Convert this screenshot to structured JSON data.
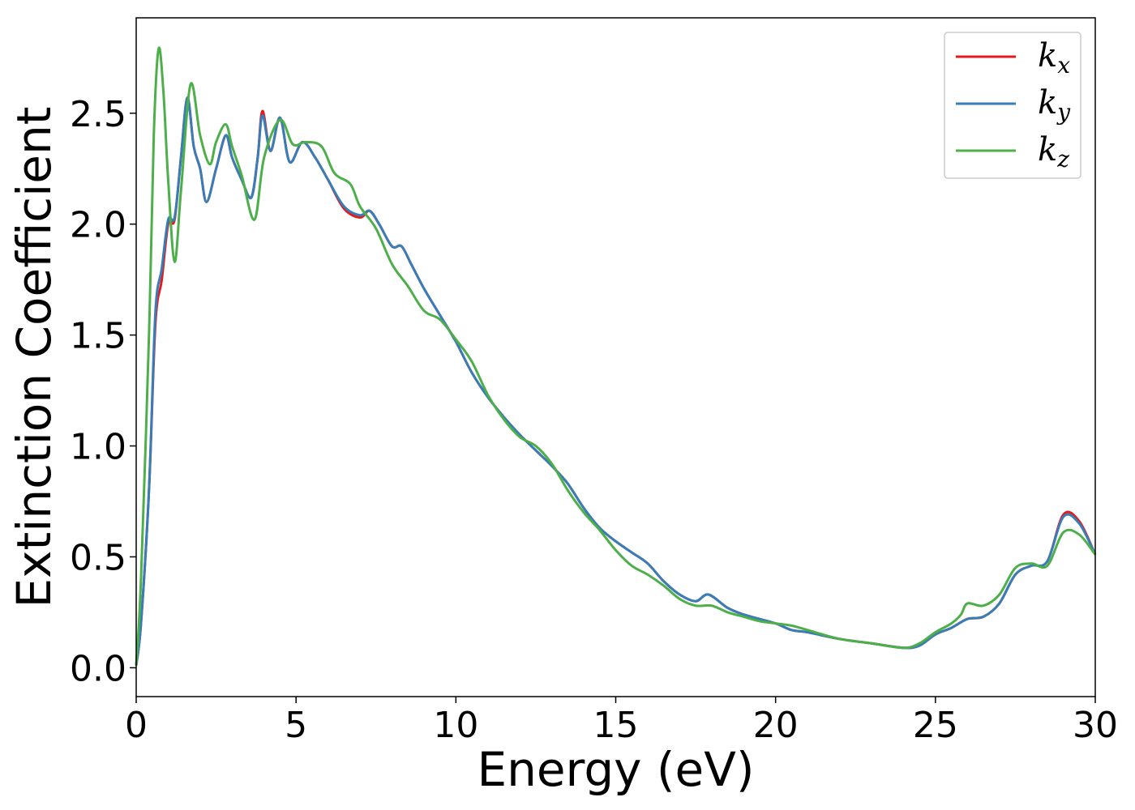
{
  "chart_data": {
    "type": "line",
    "title": "",
    "xlabel": "Energy (eV)",
    "ylabel": "Extinction Coefficient",
    "xlim": [
      0,
      30
    ],
    "ylim": [
      -0.13,
      2.93
    ],
    "xticks": [
      0,
      5,
      10,
      15,
      20,
      25,
      30
    ],
    "xtick_labels": [
      "0",
      "5",
      "10",
      "15",
      "20",
      "25",
      "30"
    ],
    "yticks": [
      0.0,
      0.5,
      1.0,
      1.5,
      2.0,
      2.5
    ],
    "ytick_labels": [
      "0.0",
      "0.5",
      "1.0",
      "1.5",
      "2.0",
      "2.5"
    ],
    "grid": false,
    "legend_position": "top-right",
    "series": [
      {
        "name": "k",
        "subscript": "x",
        "color": "#e41a1c",
        "points": [
          [
            0,
            0.01
          ],
          [
            0.15,
            0.2
          ],
          [
            0.4,
            0.8
          ],
          [
            0.6,
            1.55
          ],
          [
            0.8,
            1.75
          ],
          [
            1.0,
            2.0
          ],
          [
            1.2,
            2.02
          ],
          [
            1.4,
            2.3
          ],
          [
            1.6,
            2.57
          ],
          [
            1.8,
            2.35
          ],
          [
            2.0,
            2.25
          ],
          [
            2.2,
            2.1
          ],
          [
            2.5,
            2.25
          ],
          [
            2.8,
            2.4
          ],
          [
            3.0,
            2.3
          ],
          [
            3.3,
            2.2
          ],
          [
            3.6,
            2.12
          ],
          [
            3.8,
            2.3
          ],
          [
            3.95,
            2.51
          ],
          [
            4.2,
            2.33
          ],
          [
            4.5,
            2.48
          ],
          [
            4.8,
            2.28
          ],
          [
            5.2,
            2.37
          ],
          [
            5.6,
            2.3
          ],
          [
            6.0,
            2.2
          ],
          [
            6.5,
            2.07
          ],
          [
            7.0,
            2.03
          ],
          [
            7.3,
            2.06
          ],
          [
            7.6,
            2.0
          ],
          [
            8.0,
            1.9
          ],
          [
            8.3,
            1.9
          ],
          [
            8.6,
            1.82
          ],
          [
            9.0,
            1.71
          ],
          [
            9.5,
            1.59
          ],
          [
            10.0,
            1.47
          ],
          [
            10.5,
            1.33
          ],
          [
            11.0,
            1.22
          ],
          [
            11.5,
            1.13
          ],
          [
            12.0,
            1.05
          ],
          [
            12.5,
            0.98
          ],
          [
            13.0,
            0.91
          ],
          [
            13.5,
            0.83
          ],
          [
            14.0,
            0.72
          ],
          [
            14.5,
            0.63
          ],
          [
            15.0,
            0.57
          ],
          [
            15.5,
            0.52
          ],
          [
            16.0,
            0.47
          ],
          [
            16.5,
            0.39
          ],
          [
            17.0,
            0.33
          ],
          [
            17.5,
            0.3
          ],
          [
            17.9,
            0.33
          ],
          [
            18.5,
            0.27
          ],
          [
            19.0,
            0.24
          ],
          [
            19.5,
            0.22
          ],
          [
            20.0,
            0.2
          ],
          [
            20.5,
            0.17
          ],
          [
            21.0,
            0.16
          ],
          [
            22.0,
            0.13
          ],
          [
            23.0,
            0.11
          ],
          [
            24.0,
            0.09
          ],
          [
            24.5,
            0.1
          ],
          [
            25.0,
            0.15
          ],
          [
            25.5,
            0.18
          ],
          [
            26.0,
            0.22
          ],
          [
            26.5,
            0.23
          ],
          [
            27.0,
            0.29
          ],
          [
            27.5,
            0.42
          ],
          [
            28.0,
            0.46
          ],
          [
            28.5,
            0.48
          ],
          [
            29.0,
            0.69
          ],
          [
            29.5,
            0.66
          ],
          [
            30.0,
            0.51
          ]
        ]
      },
      {
        "name": "k",
        "subscript": "y",
        "color": "#377eb8",
        "points": [
          [
            0,
            0.01
          ],
          [
            0.15,
            0.2
          ],
          [
            0.4,
            0.8
          ],
          [
            0.6,
            1.6
          ],
          [
            0.8,
            1.8
          ],
          [
            1.0,
            2.02
          ],
          [
            1.2,
            2.03
          ],
          [
            1.4,
            2.3
          ],
          [
            1.6,
            2.57
          ],
          [
            1.8,
            2.35
          ],
          [
            2.0,
            2.25
          ],
          [
            2.2,
            2.1
          ],
          [
            2.5,
            2.25
          ],
          [
            2.8,
            2.4
          ],
          [
            3.0,
            2.3
          ],
          [
            3.3,
            2.2
          ],
          [
            3.6,
            2.12
          ],
          [
            3.8,
            2.3
          ],
          [
            3.95,
            2.49
          ],
          [
            4.2,
            2.33
          ],
          [
            4.5,
            2.48
          ],
          [
            4.8,
            2.28
          ],
          [
            5.2,
            2.37
          ],
          [
            5.6,
            2.3
          ],
          [
            6.0,
            2.2
          ],
          [
            6.5,
            2.08
          ],
          [
            7.0,
            2.04
          ],
          [
            7.3,
            2.06
          ],
          [
            7.6,
            2.0
          ],
          [
            8.0,
            1.9
          ],
          [
            8.3,
            1.9
          ],
          [
            8.6,
            1.82
          ],
          [
            9.0,
            1.71
          ],
          [
            9.5,
            1.59
          ],
          [
            10.0,
            1.47
          ],
          [
            10.5,
            1.33
          ],
          [
            11.0,
            1.22
          ],
          [
            11.5,
            1.13
          ],
          [
            12.0,
            1.05
          ],
          [
            12.5,
            0.98
          ],
          [
            13.0,
            0.91
          ],
          [
            13.5,
            0.83
          ],
          [
            14.0,
            0.72
          ],
          [
            14.5,
            0.63
          ],
          [
            15.0,
            0.57
          ],
          [
            15.5,
            0.52
          ],
          [
            16.0,
            0.47
          ],
          [
            16.5,
            0.39
          ],
          [
            17.0,
            0.33
          ],
          [
            17.5,
            0.3
          ],
          [
            17.9,
            0.33
          ],
          [
            18.5,
            0.27
          ],
          [
            19.0,
            0.24
          ],
          [
            19.5,
            0.22
          ],
          [
            20.0,
            0.2
          ],
          [
            20.5,
            0.17
          ],
          [
            21.0,
            0.16
          ],
          [
            22.0,
            0.13
          ],
          [
            23.0,
            0.11
          ],
          [
            24.0,
            0.09
          ],
          [
            24.5,
            0.1
          ],
          [
            25.0,
            0.15
          ],
          [
            25.5,
            0.18
          ],
          [
            26.0,
            0.22
          ],
          [
            26.5,
            0.23
          ],
          [
            27.0,
            0.29
          ],
          [
            27.5,
            0.42
          ],
          [
            28.0,
            0.46
          ],
          [
            28.5,
            0.48
          ],
          [
            29.0,
            0.68
          ],
          [
            29.5,
            0.65
          ],
          [
            30.0,
            0.51
          ]
        ]
      },
      {
        "name": "k",
        "subscript": "z",
        "color": "#4daf4a",
        "points": [
          [
            0,
            0.01
          ],
          [
            0.15,
            0.4
          ],
          [
            0.4,
            1.5
          ],
          [
            0.55,
            2.4
          ],
          [
            0.7,
            2.79
          ],
          [
            0.85,
            2.6
          ],
          [
            1.0,
            2.2
          ],
          [
            1.2,
            1.83
          ],
          [
            1.4,
            2.15
          ],
          [
            1.7,
            2.63
          ],
          [
            2.0,
            2.4
          ],
          [
            2.3,
            2.27
          ],
          [
            2.5,
            2.37
          ],
          [
            2.8,
            2.45
          ],
          [
            3.0,
            2.35
          ],
          [
            3.3,
            2.22
          ],
          [
            3.7,
            2.02
          ],
          [
            4.0,
            2.3
          ],
          [
            4.5,
            2.47
          ],
          [
            4.9,
            2.36
          ],
          [
            5.3,
            2.37
          ],
          [
            5.8,
            2.35
          ],
          [
            6.2,
            2.23
          ],
          [
            6.7,
            2.18
          ],
          [
            7.0,
            2.08
          ],
          [
            7.5,
            1.98
          ],
          [
            8.0,
            1.82
          ],
          [
            8.5,
            1.72
          ],
          [
            9.0,
            1.61
          ],
          [
            9.5,
            1.57
          ],
          [
            10.0,
            1.48
          ],
          [
            10.5,
            1.38
          ],
          [
            11.0,
            1.23
          ],
          [
            11.5,
            1.12
          ],
          [
            12.0,
            1.04
          ],
          [
            12.5,
            1.0
          ],
          [
            13.0,
            0.92
          ],
          [
            13.5,
            0.8
          ],
          [
            14.0,
            0.7
          ],
          [
            14.5,
            0.62
          ],
          [
            15.0,
            0.53
          ],
          [
            15.5,
            0.46
          ],
          [
            16.0,
            0.42
          ],
          [
            16.5,
            0.37
          ],
          [
            17.0,
            0.31
          ],
          [
            17.5,
            0.28
          ],
          [
            18.0,
            0.28
          ],
          [
            18.5,
            0.25
          ],
          [
            19.0,
            0.23
          ],
          [
            19.5,
            0.21
          ],
          [
            20.0,
            0.2
          ],
          [
            20.5,
            0.19
          ],
          [
            21.0,
            0.17
          ],
          [
            22.0,
            0.13
          ],
          [
            23.0,
            0.11
          ],
          [
            24.0,
            0.09
          ],
          [
            24.5,
            0.11
          ],
          [
            25.0,
            0.16
          ],
          [
            25.5,
            0.2
          ],
          [
            25.8,
            0.24
          ],
          [
            26.0,
            0.29
          ],
          [
            26.5,
            0.28
          ],
          [
            27.0,
            0.33
          ],
          [
            27.5,
            0.45
          ],
          [
            28.0,
            0.47
          ],
          [
            28.5,
            0.46
          ],
          [
            29.0,
            0.61
          ],
          [
            29.5,
            0.6
          ],
          [
            30.0,
            0.51
          ]
        ]
      }
    ]
  }
}
